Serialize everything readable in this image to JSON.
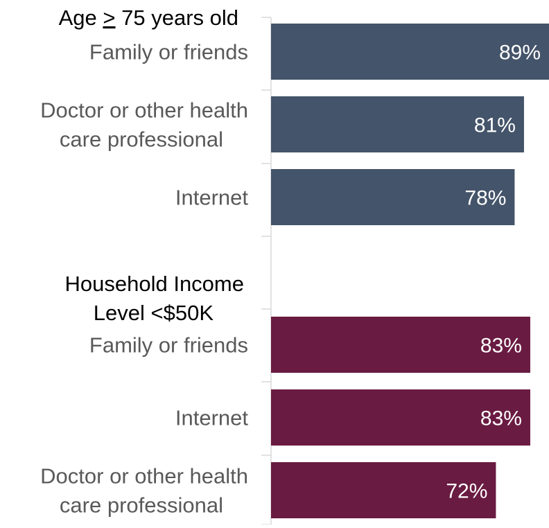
{
  "chart_data": {
    "type": "bar",
    "orientation": "horizontal",
    "xlim": [
      0,
      89
    ],
    "value_suffix": "%",
    "grid": false,
    "legend": "none",
    "groups": [
      {
        "title_prefix": "Age ",
        "title_ge_symbol": ">",
        "title_suffix": " 75 years old",
        "title": "Age ≥ 75 years old",
        "color": "#44546a",
        "items": [
          {
            "category": [
              "Family or friends"
            ],
            "value": 89,
            "label": "89%"
          },
          {
            "category": [
              "Doctor or other health",
              "care professional"
            ],
            "value": 81,
            "label": "81%"
          },
          {
            "category": [
              "Internet"
            ],
            "value": 78,
            "label": "78%"
          }
        ]
      },
      {
        "title_lines": [
          "Household Income",
          "Level <$50K"
        ],
        "color": "#6a1b42",
        "items": [
          {
            "category": [
              "Family or friends"
            ],
            "value": 83,
            "label": "83%"
          },
          {
            "category": [
              "Internet"
            ],
            "value": 83,
            "label": "83%"
          },
          {
            "category": [
              "Doctor or other health",
              "care professional"
            ],
            "value": 72,
            "label": "72%"
          }
        ]
      }
    ]
  }
}
